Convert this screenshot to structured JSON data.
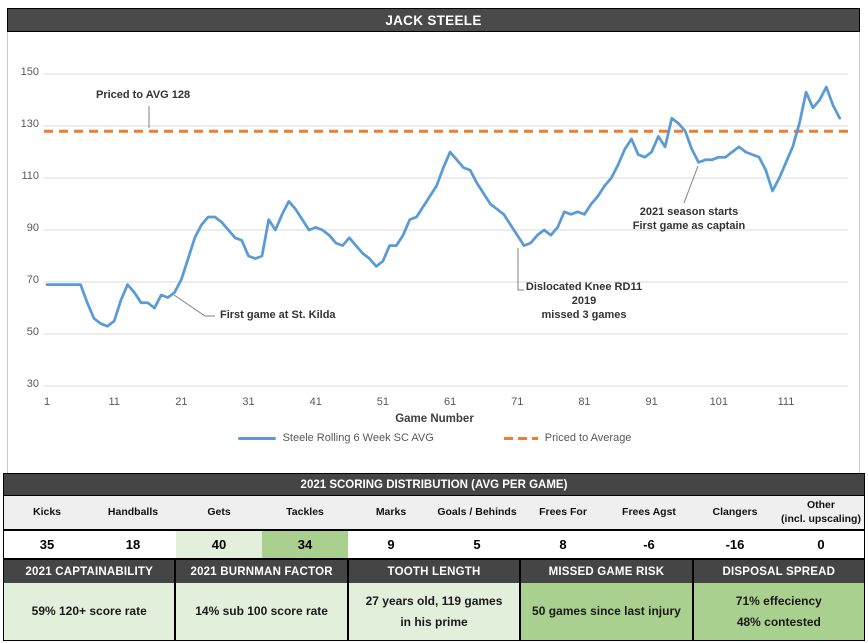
{
  "header": {
    "title": "JACK STEELE"
  },
  "chart_data": {
    "type": "line",
    "xlabel": "Game Number",
    "ylabel": "",
    "xlim": [
      1,
      119
    ],
    "ylim": [
      30,
      150
    ],
    "grid": true,
    "legend_position": "bottom",
    "y_ticks": [
      150,
      130,
      110,
      90,
      70,
      50,
      30
    ],
    "x_ticks": [
      1,
      11,
      21,
      31,
      41,
      51,
      61,
      71,
      81,
      91,
      101,
      111
    ],
    "series": [
      {
        "name": "Steele Rolling 6 Week SC AVG",
        "color": "#5b9bd5",
        "style": "solid",
        "x_start": 1,
        "values": [
          69,
          69,
          69,
          69,
          69,
          69,
          62,
          56,
          54,
          53,
          55,
          63,
          69,
          66,
          62,
          62,
          60,
          65,
          64,
          66,
          71,
          79,
          87,
          92,
          95,
          95,
          93,
          90,
          87,
          86,
          80,
          79,
          80,
          94,
          90,
          96,
          101,
          98,
          94,
          90,
          91,
          90,
          88,
          85,
          84,
          87,
          84,
          81,
          79,
          76,
          78,
          84,
          84,
          88,
          94,
          95,
          99,
          103,
          107,
          114,
          120,
          117,
          114,
          113,
          108,
          104,
          100,
          98,
          96,
          92,
          88,
          84,
          85,
          88,
          90,
          88,
          91,
          97,
          96,
          97,
          96,
          100,
          103,
          107,
          110,
          115,
          121,
          125,
          119,
          118,
          120,
          126,
          122,
          133,
          131,
          128,
          121,
          116,
          117,
          117,
          118,
          118,
          120,
          122,
          120,
          119,
          118,
          113,
          105,
          110,
          116,
          122,
          131,
          143,
          137,
          140,
          145,
          138,
          133
        ]
      },
      {
        "name": "Priced to Average",
        "color": "#ed7d31",
        "style": "dashed",
        "value": 128
      }
    ],
    "legend": [
      "Steele Rolling 6 Week SC AVG",
      "Priced to Average"
    ],
    "annotations": [
      {
        "text": "Priced to AVG 128",
        "anchor_game": null,
        "anchor_value": 128
      },
      {
        "text": "First game at St. Kilda",
        "anchor_game": 20,
        "anchor_value": 66
      },
      {
        "text": "Dislocated Knee RD11 2019\nmissed 3 games",
        "anchor_game": 72,
        "anchor_value": 84
      },
      {
        "text": "2021 season starts\nFirst game as captain",
        "anchor_game": 98,
        "anchor_value": 116
      }
    ]
  },
  "distribution": {
    "title": "2021 SCORING DISTRIBUTION (AVG PER GAME)",
    "columns": [
      "Kicks",
      "Handballs",
      "Gets",
      "Tackles",
      "Marks",
      "Goals / Behinds",
      "Frees For",
      "Frees Agst",
      "Clangers",
      "Other\n(incl. upscaling)"
    ],
    "values": [
      "35",
      "18",
      "40",
      "34",
      "9",
      "5",
      "8",
      "-6",
      "-16",
      "0"
    ]
  },
  "factors": [
    {
      "header": "2021 CAPTAINABILITY",
      "content": "59% 120+ score rate"
    },
    {
      "header": "2021 BURNMAN FACTOR",
      "content": "14% sub 100 score rate"
    },
    {
      "header": "TOOTH LENGTH",
      "content": "27 years old, 119 games\nin his prime"
    },
    {
      "header": "MISSED GAME RISK",
      "content": "50 games since last injury"
    },
    {
      "header": "DISPOSAL SPREAD",
      "content": "71% effeciency\n48% contested"
    }
  ],
  "colors": {
    "series_blue": "#5b9bd5",
    "priced_orange": "#ed7d31",
    "dark_bar": "#454545",
    "light_green": "#e2efda",
    "medium_green": "#a9d08e",
    "gridline": "#d9d9d9"
  }
}
